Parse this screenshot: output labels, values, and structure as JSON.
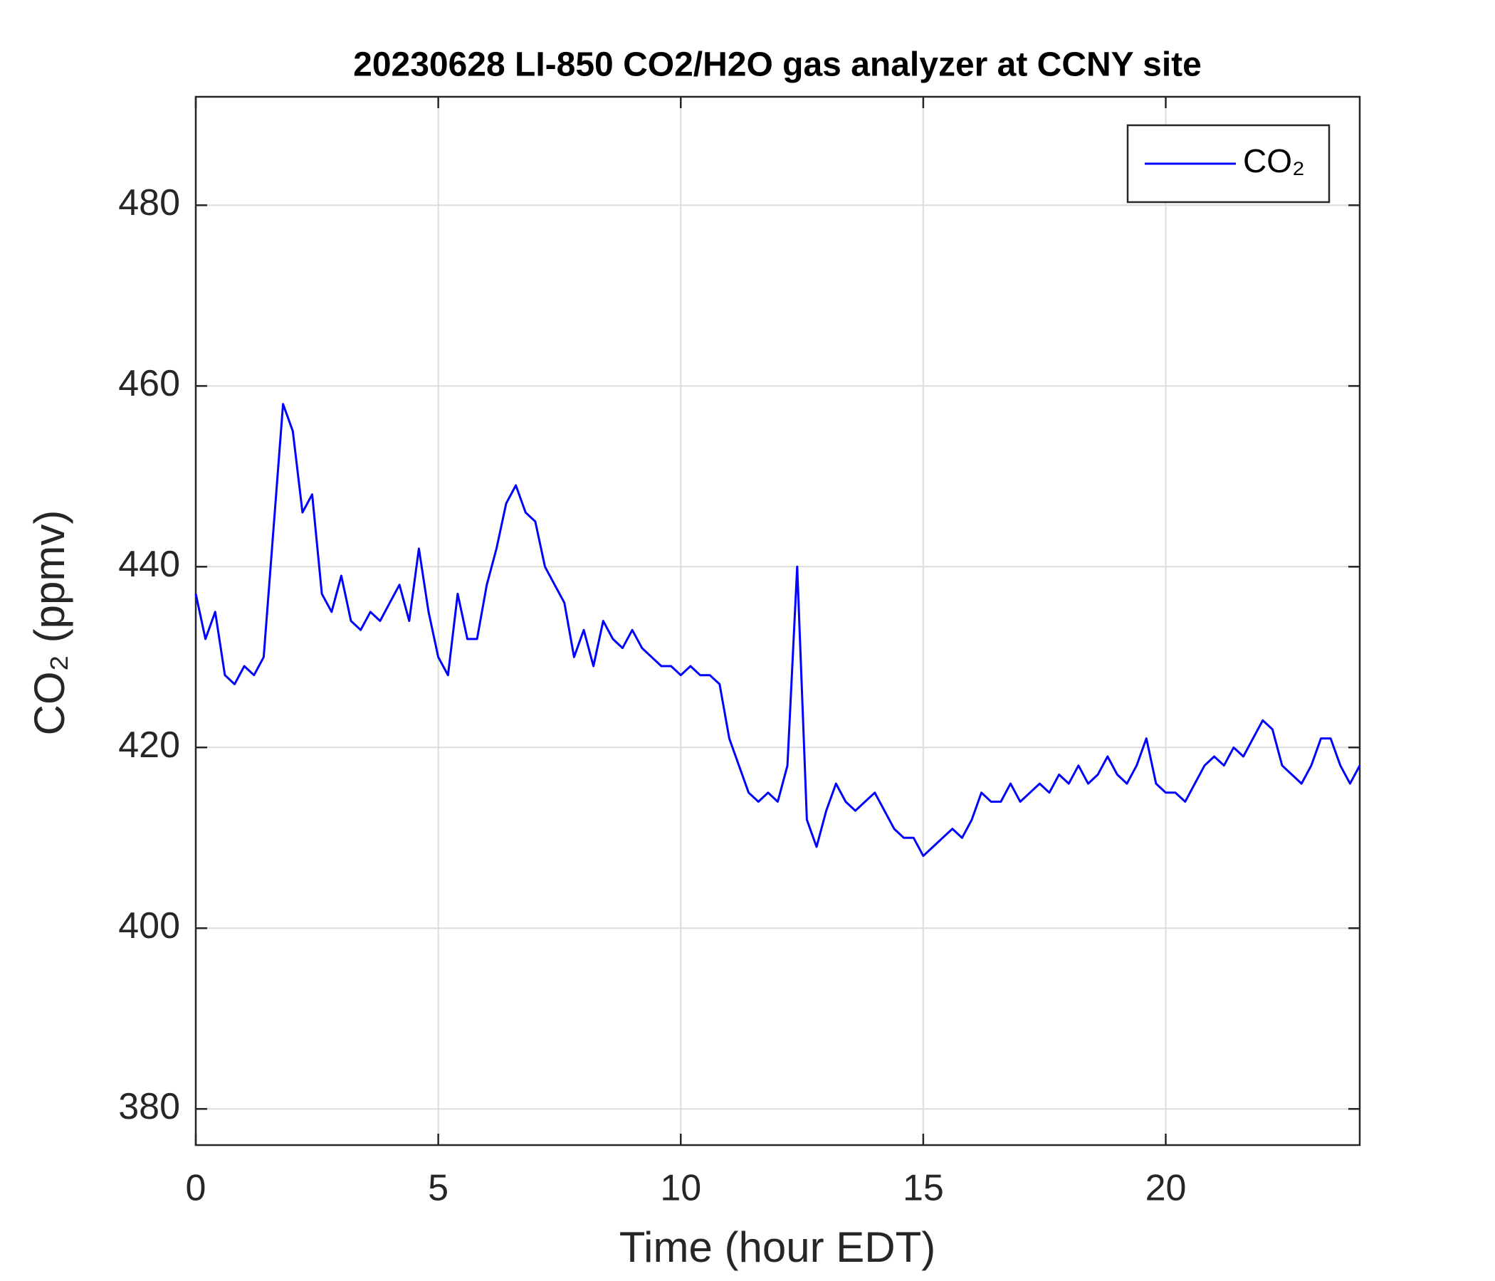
{
  "chart_data": {
    "type": "line",
    "title": "20230628 LI-850 CO2/H2O gas analyzer at CCNY site",
    "x_label": "Time (hour EDT)",
    "y_label": "CO₂ (ppmv)",
    "x": [
      0,
      0.2,
      0.4,
      0.6,
      0.8,
      1,
      1.2,
      1.4,
      1.6,
      1.8,
      2,
      2.2,
      2.4,
      2.6,
      2.8,
      3,
      3.2,
      3.4,
      3.6,
      3.8,
      4,
      4.2,
      4.4,
      4.6,
      4.8,
      5,
      5.2,
      5.4,
      5.6,
      5.8,
      6,
      6.2,
      6.4,
      6.6,
      6.8,
      7,
      7.2,
      7.4,
      7.6,
      7.8,
      8,
      8.2,
      8.4,
      8.6,
      8.8,
      9,
      9.2,
      9.4,
      9.6,
      9.8,
      10,
      10.2,
      10.4,
      10.6,
      10.8,
      11,
      11.2,
      11.4,
      11.6,
      11.8,
      12,
      12.2,
      12.4,
      12.6,
      12.8,
      13,
      13.2,
      13.4,
      13.6,
      13.8,
      14,
      14.2,
      14.4,
      14.6,
      14.8,
      15,
      15.2,
      15.4,
      15.6,
      15.8,
      16,
      16.2,
      16.4,
      16.6,
      16.8,
      17,
      17.2,
      17.4,
      17.6,
      17.8,
      18,
      18.2,
      18.4,
      18.6,
      18.8,
      19,
      19.2,
      19.4,
      19.6,
      19.8,
      20,
      20.2,
      20.4,
      20.6,
      20.8,
      21,
      21.2,
      21.4,
      21.6,
      21.8,
      22,
      22.2,
      22.4,
      22.6,
      22.8,
      23,
      23.2,
      23.4,
      23.6,
      23.8,
      24
    ],
    "series": [
      {
        "name": "CO₂",
        "color": "#0000ff",
        "values": [
          437,
          432,
          435,
          428,
          427,
          429,
          428,
          430,
          444,
          458,
          455,
          446,
          448,
          437,
          435,
          439,
          434,
          433,
          435,
          434,
          436,
          438,
          434,
          442,
          435,
          430,
          428,
          437,
          432,
          432,
          438,
          442,
          447,
          449,
          446,
          445,
          440,
          438,
          436,
          430,
          433,
          429,
          434,
          432,
          431,
          433,
          431,
          430,
          429,
          429,
          428,
          429,
          428,
          428,
          427,
          421,
          418,
          415,
          414,
          415,
          414,
          418,
          440,
          412,
          409,
          413,
          416,
          414,
          413,
          414,
          415,
          413,
          411,
          410,
          410,
          408,
          409,
          410,
          411,
          410,
          412,
          415,
          414,
          414,
          416,
          414,
          415,
          416,
          415,
          417,
          416,
          418,
          416,
          417,
          419,
          417,
          416,
          418,
          421,
          416,
          415,
          415,
          414,
          416,
          418,
          419,
          418,
          420,
          419,
          421,
          423,
          422,
          418,
          417,
          416,
          418,
          421,
          421,
          418,
          416,
          418
        ]
      }
    ],
    "xlim": [
      0,
      24
    ],
    "xticks": [
      0,
      5,
      10,
      15,
      20
    ],
    "ylim": [
      376,
      492
    ],
    "yticks": [
      380,
      400,
      420,
      440,
      460,
      480
    ],
    "grid": true,
    "legend": "northeast"
  }
}
